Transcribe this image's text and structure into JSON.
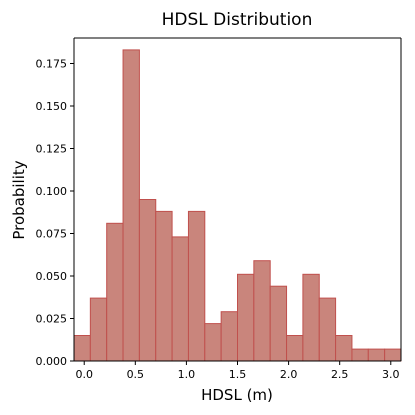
{
  "chart_data": {
    "type": "bar",
    "title": "HDSL Distribution",
    "xlabel": "HDSL (m)",
    "ylabel": "Probability",
    "bin_edges": [
      -0.1,
      0.06,
      0.22,
      0.38,
      0.54,
      0.7,
      0.86,
      1.02,
      1.18,
      1.34,
      1.5,
      1.66,
      1.82,
      1.98,
      2.14,
      2.3,
      2.46,
      2.62,
      2.78,
      2.94,
      3.1
    ],
    "values": [
      0.015,
      0.037,
      0.081,
      0.183,
      0.095,
      0.088,
      0.073,
      0.088,
      0.022,
      0.029,
      0.051,
      0.059,
      0.044,
      0.015,
      0.051,
      0.037,
      0.015,
      0.007,
      0.007,
      0.007
    ],
    "xlim": [
      -0.1,
      3.1
    ],
    "ylim": [
      0,
      0.19
    ],
    "xticks": [
      0.0,
      0.5,
      1.0,
      1.5,
      2.0,
      2.5,
      3.0
    ],
    "xtick_labels": [
      "0.0",
      "0.5",
      "1.0",
      "1.5",
      "2.0",
      "2.5",
      "3.0"
    ],
    "yticks": [
      0.0,
      0.025,
      0.05,
      0.075,
      0.1,
      0.125,
      0.15,
      0.175
    ],
    "ytick_labels": [
      "0.000",
      "0.025",
      "0.050",
      "0.075",
      "0.100",
      "0.125",
      "0.150",
      "0.175"
    ],
    "bar_fill": "#c9857c",
    "bar_edge": "#c0504d",
    "grid": false,
    "legend": "none"
  }
}
